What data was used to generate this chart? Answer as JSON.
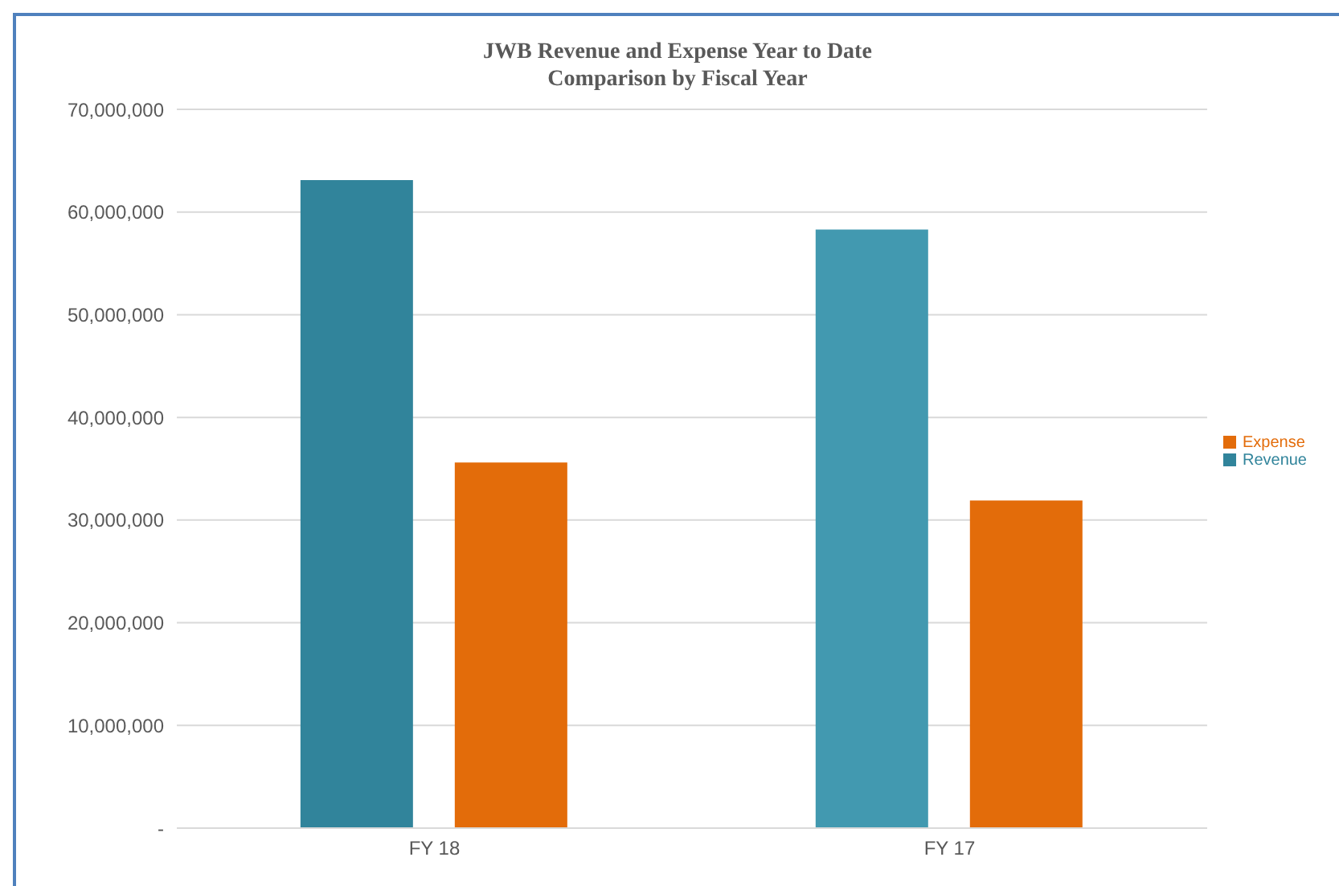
{
  "chart_data": {
    "type": "bar",
    "title": "JWB Revenue and Expense Year to Date\nComparison by Fiscal Year",
    "categories": [
      "FY 18",
      "FY 17"
    ],
    "series": [
      {
        "name": "Revenue",
        "color": "#31849b",
        "colors": [
          "#31849b",
          "#4299b0"
        ],
        "values": [
          63100000,
          58300000
        ]
      },
      {
        "name": "Expense",
        "color": "#e36c0a",
        "values": [
          35600000,
          31900000
        ]
      }
    ],
    "ylim": [
      0,
      70000000
    ],
    "yticks": [
      {
        "value": 0,
        "label": "-"
      },
      {
        "value": 10000000,
        "label": "10,000,000"
      },
      {
        "value": 20000000,
        "label": "20,000,000"
      },
      {
        "value": 30000000,
        "label": "30,000,000"
      },
      {
        "value": 40000000,
        "label": "40,000,000"
      },
      {
        "value": 50000000,
        "label": "50,000,000"
      },
      {
        "value": 60000000,
        "label": "60,000,000"
      },
      {
        "value": 70000000,
        "label": "70,000,000"
      }
    ],
    "grid": "y",
    "legend": "right"
  }
}
